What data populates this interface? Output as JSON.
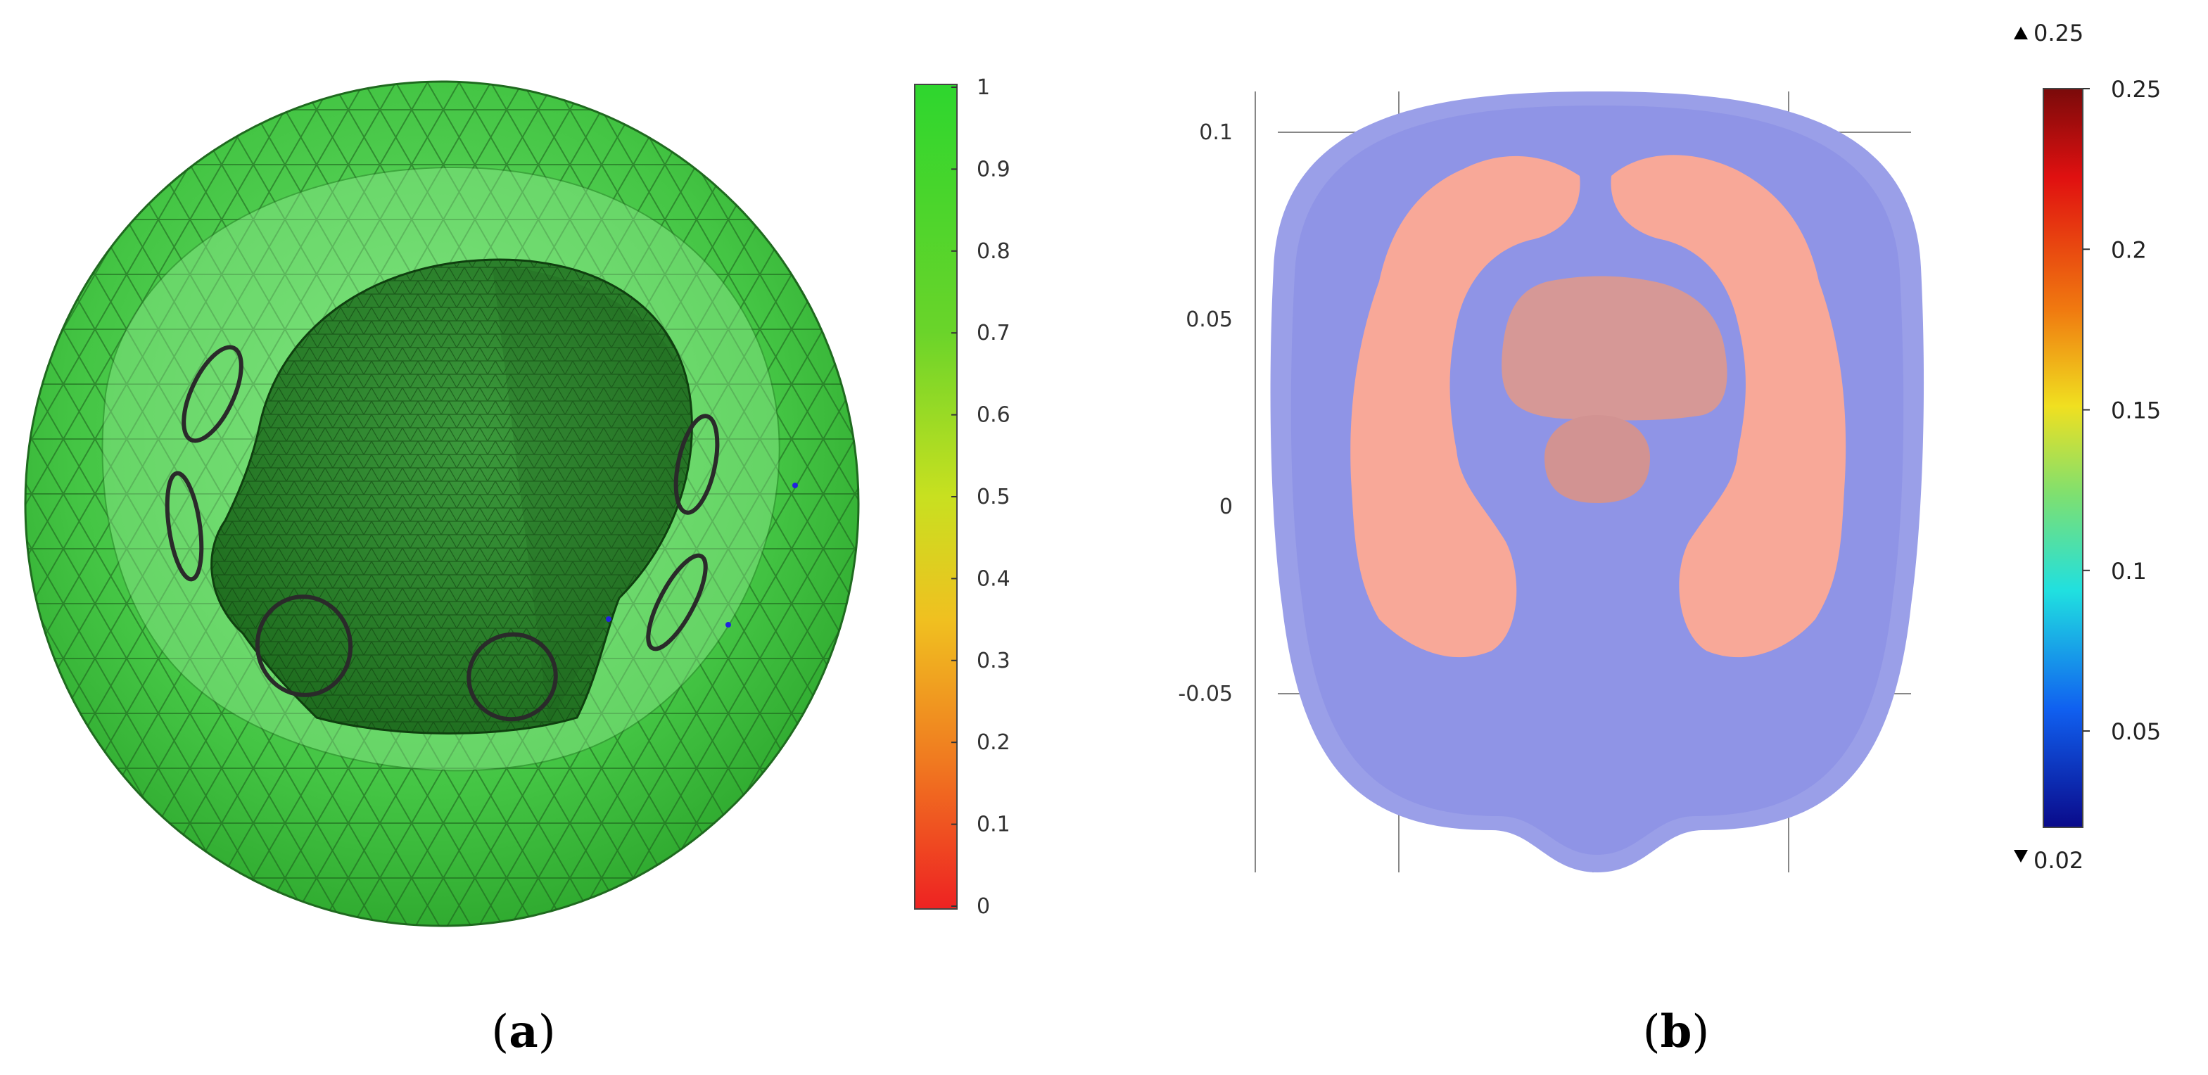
{
  "panel_a": {
    "label": "a",
    "colorbar": {
      "ticks": [
        "1",
        "0.9",
        "0.8",
        "0.7",
        "0.6",
        "0.5",
        "0.4",
        "0.3",
        "0.2",
        "0.1",
        "0"
      ],
      "gradient": [
        "#2ed62e",
        "#5dd22a",
        "#9ad62a",
        "#e0e020",
        "#f0b020",
        "#f07020",
        "#ee3322"
      ]
    },
    "colors": {
      "sphere": "#3fc83f",
      "head": "#2f9c2f",
      "mesh": "#1a5a1a"
    }
  },
  "panel_b": {
    "label": "b",
    "axis": {
      "y_ticks": [
        "0.1",
        "0.05",
        "0",
        "-0.05"
      ]
    },
    "colorbar": {
      "max_marker": "0.25",
      "min_marker": "0.02",
      "ticks": [
        "0.25",
        "0.2",
        "0.15",
        "0.1",
        "0.05"
      ],
      "gradient": [
        "#7a0a0a",
        "#e01010",
        "#f07a10",
        "#f0e020",
        "#8ee060",
        "#20e0e0",
        "#1060f0",
        "#0a0a8a"
      ]
    },
    "colors": {
      "outer_tissue": "#9a9fe8",
      "inner_tissue": "#8f94e6",
      "ventricles": "#f8a898",
      "core": "#d69896"
    }
  }
}
